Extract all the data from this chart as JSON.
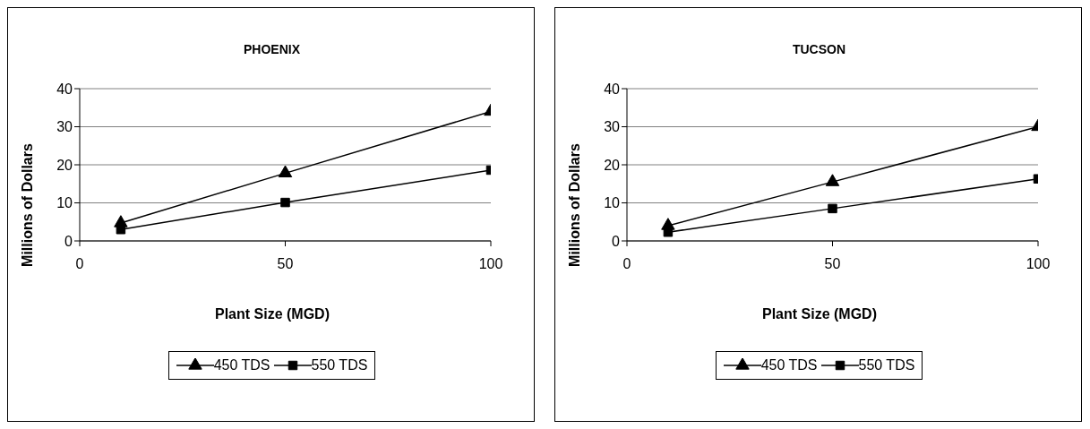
{
  "chart_data": [
    {
      "type": "line",
      "title": "PHOENIX",
      "xlabel": "Plant Size (MGD)",
      "ylabel": "Millions of Dollars",
      "x": [
        10,
        50,
        100
      ],
      "series": [
        {
          "name": "450 TDS",
          "color": "#000000",
          "marker": "triangle",
          "values": [
            4.7,
            17.8,
            34
          ]
        },
        {
          "name": "550 TDS",
          "color": "#000000",
          "marker": "square",
          "values": [
            3,
            10.1,
            18.6
          ]
        }
      ],
      "xlim": [
        0,
        100
      ],
      "xticks": [
        0,
        50,
        100
      ],
      "ylim": [
        0,
        40
      ],
      "yticks": [
        0,
        10,
        20,
        30,
        40
      ],
      "grid": "y",
      "legend": "bottom",
      "line_style": "solid"
    },
    {
      "type": "line",
      "title": "TUCSON",
      "xlabel": "Plant Size (MGD)",
      "ylabel": "Millions of Dollars",
      "x": [
        10,
        50,
        100
      ],
      "series": [
        {
          "name": "450 TDS",
          "color": "#000000",
          "marker": "triangle",
          "values": [
            4,
            15.5,
            30
          ]
        },
        {
          "name": "550 TDS",
          "color": "#000000",
          "marker": "square",
          "values": [
            2.3,
            8.5,
            16.3
          ]
        }
      ],
      "xlim": [
        0,
        100
      ],
      "xticks": [
        0,
        50,
        100
      ],
      "ylim": [
        0,
        40
      ],
      "yticks": [
        0,
        10,
        20,
        30,
        40
      ],
      "grid": "y",
      "legend": "bottom",
      "line_style": "solid"
    }
  ]
}
